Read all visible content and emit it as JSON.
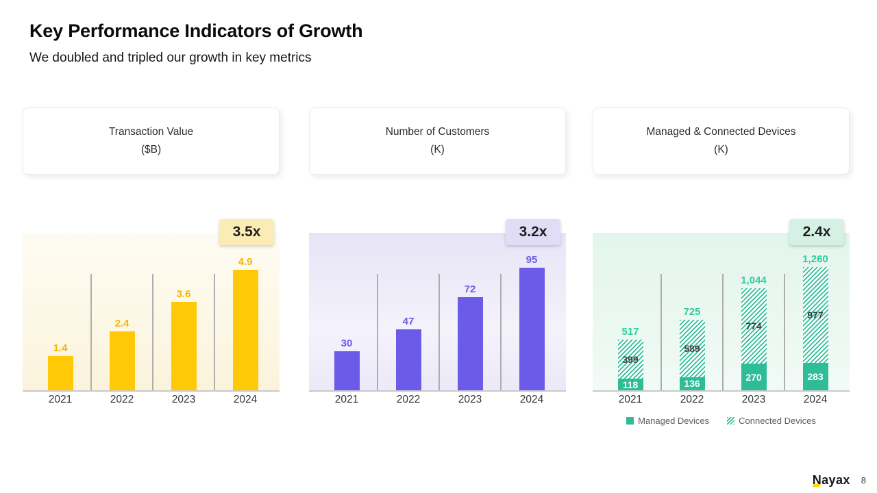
{
  "header": {
    "title": "Key Performance Indicators of Growth",
    "subtitle": "We doubled and tripled our growth in key metrics"
  },
  "cards": [
    {
      "title": "Transaction Value",
      "unit": "($B)"
    },
    {
      "title": "Number of Customers",
      "unit": "(K)"
    },
    {
      "title": "Managed & Connected Devices",
      "unit": "(K)"
    }
  ],
  "chart_data": [
    {
      "type": "bar",
      "title": "Transaction Value ($B)",
      "categories": [
        "2021",
        "2022",
        "2023",
        "2024"
      ],
      "values": [
        1.4,
        2.4,
        3.6,
        4.9
      ],
      "labels": [
        "1.4",
        "2.4",
        "3.6",
        "4.9"
      ],
      "growth_badge": "3.5x",
      "ylim": [
        0,
        6.4
      ],
      "grid": "vertical-separators",
      "legend_position": "none",
      "bar_color": "#FFC908",
      "label_color": "#F2B705",
      "badge_bg": "#FAECB4"
    },
    {
      "type": "bar",
      "title": "Number of Customers (K)",
      "categories": [
        "2021",
        "2022",
        "2023",
        "2024"
      ],
      "values": [
        30,
        47,
        72,
        95
      ],
      "labels": [
        "30",
        "47",
        "72",
        "95"
      ],
      "growth_badge": "3.2x",
      "ylim": [
        0,
        122
      ],
      "grid": "vertical-separators",
      "legend_position": "none",
      "bar_color": "#6C5BE8",
      "label_color": "#6C5BE8",
      "badge_bg": "#E2DDF7"
    },
    {
      "type": "stacked-bar",
      "title": "Managed & Connected Devices (K)",
      "categories": [
        "2021",
        "2022",
        "2023",
        "2024"
      ],
      "series": [
        {
          "name": "Managed Devices",
          "style": "solid",
          "values": [
            118,
            136,
            270,
            283
          ],
          "labels": [
            "118",
            "136",
            "270",
            "283"
          ],
          "label_color": "#FFFFFF"
        },
        {
          "name": "Connected Devices",
          "style": "hatch",
          "values": [
            399,
            589,
            774,
            977
          ],
          "labels": [
            "399",
            "589",
            "774",
            "977"
          ],
          "label_color": "#3E3E3E"
        }
      ],
      "totals": [
        517,
        725,
        1044,
        1260
      ],
      "total_labels": [
        "517",
        "725",
        "1,044",
        "1,260"
      ],
      "growth_badge": "2.4x",
      "ylim": [
        0,
        1610
      ],
      "grid": "vertical-separators",
      "legend_position": "bottom",
      "bar_color": "#2EBD96",
      "total_label_color": "#2FCE9C",
      "badge_bg": "#D5F1E6"
    }
  ],
  "footer": {
    "logo_text": "Nayax",
    "page_number": "8"
  }
}
